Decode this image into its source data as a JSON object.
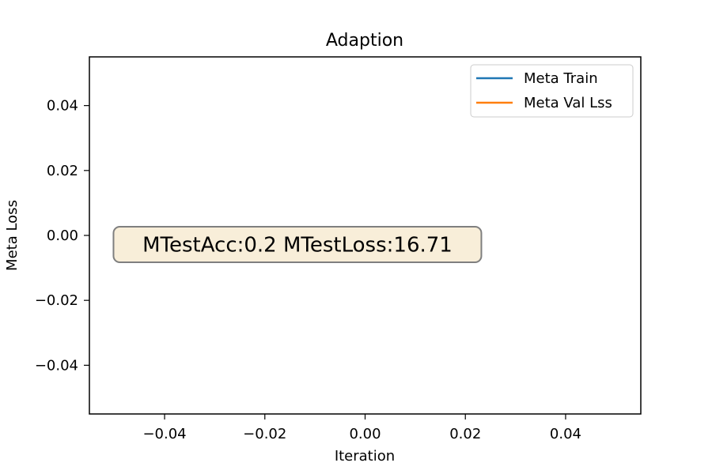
{
  "chart_data": {
    "type": "line",
    "title": "Adaption",
    "xlabel": "Iteration",
    "ylabel": "Meta Loss",
    "xlim": [
      -0.055,
      0.055
    ],
    "ylim": [
      -0.055,
      0.055
    ],
    "xticks": [
      -0.04,
      -0.02,
      0.0,
      0.02,
      0.04
    ],
    "yticks": [
      -0.04,
      -0.02,
      0.0,
      0.02,
      0.04
    ],
    "xtick_labels": [
      "−0.04",
      "−0.02",
      "0.00",
      "0.02",
      "0.04"
    ],
    "ytick_labels": [
      "−0.04",
      "−0.02",
      "0.00",
      "0.02",
      "0.04"
    ],
    "grid": false,
    "legend_position": "top-right",
    "series": [
      {
        "name": "Meta Train",
        "color": "#1f77b4",
        "x": [],
        "y": []
      },
      {
        "name": "Meta Val Lss",
        "color": "#ff7f0e",
        "x": [],
        "y": []
      }
    ],
    "annotation": {
      "text": "MTestAcc:0.2  MTestLoss:16.71",
      "x": -0.0135,
      "y": -0.0028,
      "facecolor": "#f8eed9",
      "edgecolor": "#7f7f7f"
    }
  }
}
